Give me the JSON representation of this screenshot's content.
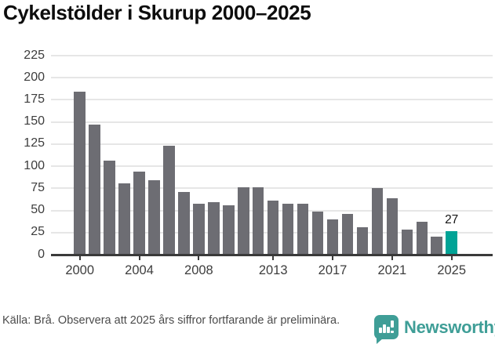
{
  "title": "Cykelstölder i Skurup 2000–2025",
  "chart_data": {
    "type": "bar",
    "title": "Cykelstölder i Skurup 2000–2025",
    "x": [
      2000,
      2001,
      2002,
      2003,
      2004,
      2005,
      2006,
      2007,
      2008,
      2009,
      2010,
      2011,
      2012,
      2013,
      2014,
      2015,
      2016,
      2017,
      2018,
      2019,
      2020,
      2021,
      2022,
      2023,
      2024,
      2025
    ],
    "values": [
      184,
      147,
      106,
      81,
      94,
      84,
      123,
      71,
      58,
      59,
      56,
      76,
      76,
      61,
      58,
      58,
      49,
      40,
      46,
      31,
      75,
      64,
      28,
      37,
      20,
      27
    ],
    "xlabel": "",
    "ylabel": "",
    "ylim": [
      0,
      225
    ],
    "y_ticks": [
      0,
      25,
      50,
      75,
      100,
      125,
      150,
      175,
      200,
      225
    ],
    "x_tick_years": [
      2000,
      2004,
      2008,
      2013,
      2017,
      2021,
      2025
    ],
    "grid": true,
    "legend_position": "none",
    "highlight_index": 25,
    "value_label": {
      "index": 25,
      "text": "27"
    },
    "colors": {
      "bar": "#6d6d73",
      "highlight": "#00a396",
      "grid": "#e6e6e6",
      "axis": "#3a3a3a",
      "tick_label": "#3d3d3d"
    }
  },
  "footer": {
    "source_note": "Källa: Brå. Observera att 2025 års siffror fortfarande är preliminära.",
    "brand": "Newsworthy",
    "brand_color": "#3f9e97"
  }
}
